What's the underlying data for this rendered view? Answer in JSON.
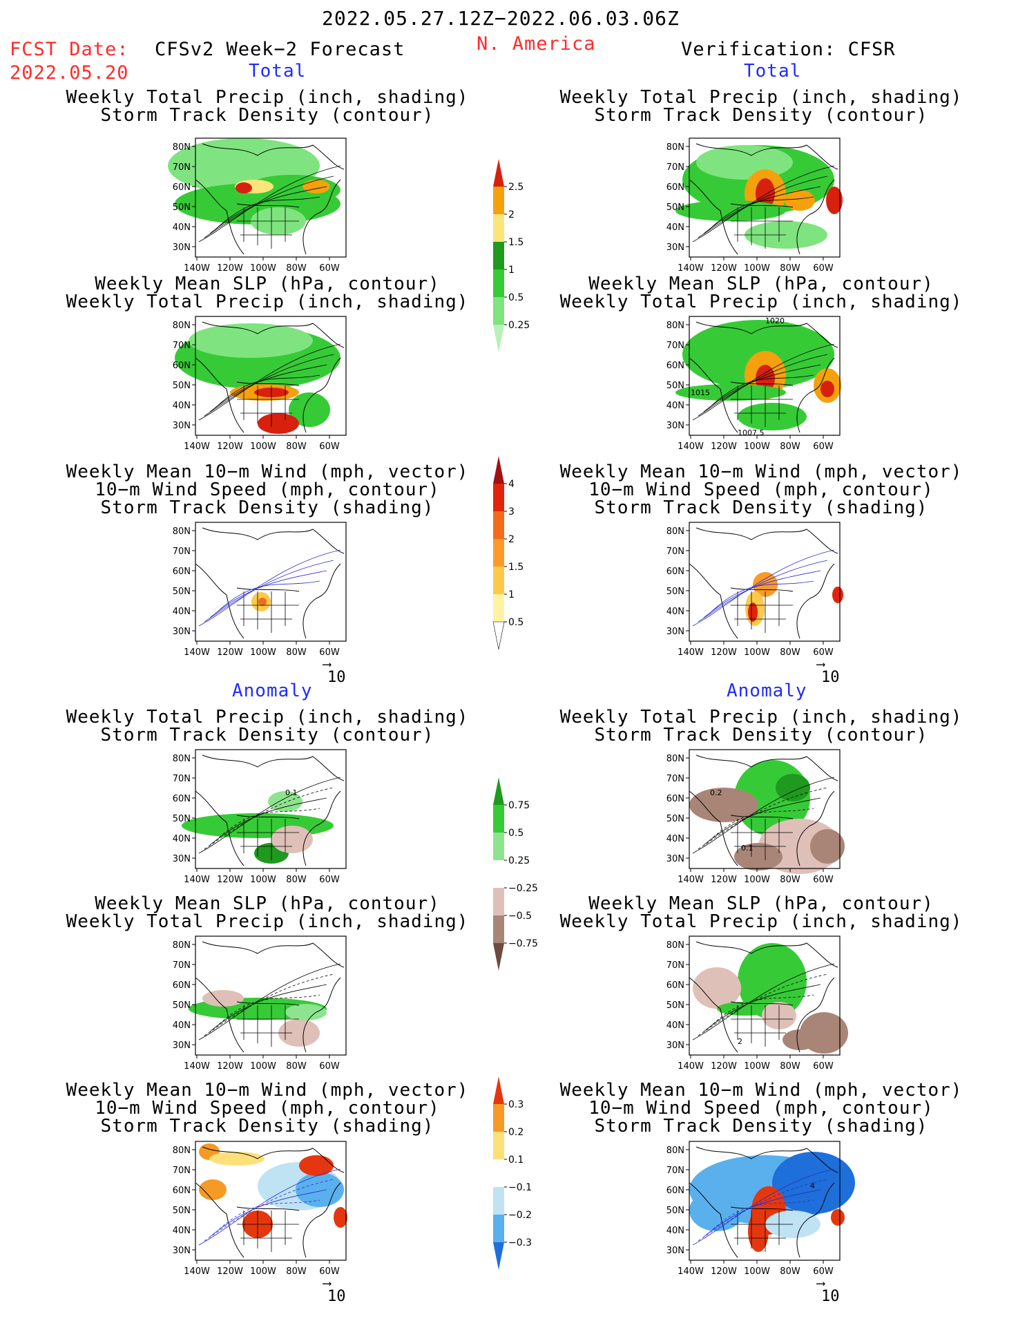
{
  "header": {
    "date_range": "2022.05.27.12Z−2022.06.03.06Z",
    "fcst_label": "FCST Date:",
    "fcst_date": "2022.05.20",
    "forecast_title": "CFSv2 Week−2 Forecast",
    "region": "N. America",
    "verification_title": "Verification: CFSR"
  },
  "sections": {
    "total": "Total",
    "anomaly": "Anomaly"
  },
  "panel_titles": {
    "precip_storm": [
      "Weekly Total Precip (inch, shading)",
      "Storm Track Density (contour)"
    ],
    "slp_precip": [
      "Weekly Mean SLP (hPa, contour)",
      "Weekly Total Precip (inch, shading)"
    ],
    "wind_storm": [
      "Weekly Mean 10−m Wind (mph, vector)",
      "10−m Wind Speed (mph, contour)",
      "Storm Track Density (shading)"
    ]
  },
  "axes": {
    "lat_labels": [
      "80N",
      "70N",
      "60N",
      "50N",
      "40N",
      "30N"
    ],
    "lon_labels": [
      "140W",
      "120W",
      "100W",
      "80W",
      "60W"
    ]
  },
  "map_annotations": {
    "slp_total_verification": [
      "1020",
      "1015",
      "1007.5"
    ],
    "storm_anom_forecast": [
      "0.1"
    ],
    "storm_anom_verification": [
      "0.2",
      "0.1"
    ],
    "slp_anom_verification": [
      "2"
    ],
    "wind_anom_verification": [
      "4"
    ]
  },
  "reference_vector": "10",
  "colorbars": {
    "precip_total": {
      "labels": [
        "2.5",
        "2",
        "1.5",
        "1",
        "0.5",
        "0.25"
      ],
      "colors": [
        "#d8200f",
        "#f5a10d",
        "#fbe47a",
        "#1f9a1f",
        "#36cb36",
        "#7fe47f",
        "#b8f0b8"
      ]
    },
    "storm_total": {
      "labels": [
        "4",
        "3",
        "2",
        "1.5",
        "1",
        "0.5"
      ],
      "colors": [
        "#a31010",
        "#e1240b",
        "#f26b1b",
        "#fb9a2a",
        "#fcc94a",
        "#fff3a3",
        "#ffffff"
      ]
    },
    "precip_anom": {
      "labels": [
        "0.75",
        "0.5",
        "0.25",
        "−0.25",
        "−0.5",
        "−0.75"
      ],
      "colors": [
        "#1f9a1f",
        "#36cb36",
        "#8ee48e",
        "#ffffff",
        "#dfc0b8",
        "#a98577",
        "#6f4a3f"
      ]
    },
    "storm_anom": {
      "labels": [
        "0.3",
        "0.2",
        "0.1",
        "−0.1",
        "−0.2",
        "−0.3"
      ],
      "colors": [
        "#e5370f",
        "#f59a25",
        "#fde07a",
        "#ffffff",
        "#bfe3f3",
        "#5ab0ec",
        "#1e6fd9"
      ]
    }
  }
}
